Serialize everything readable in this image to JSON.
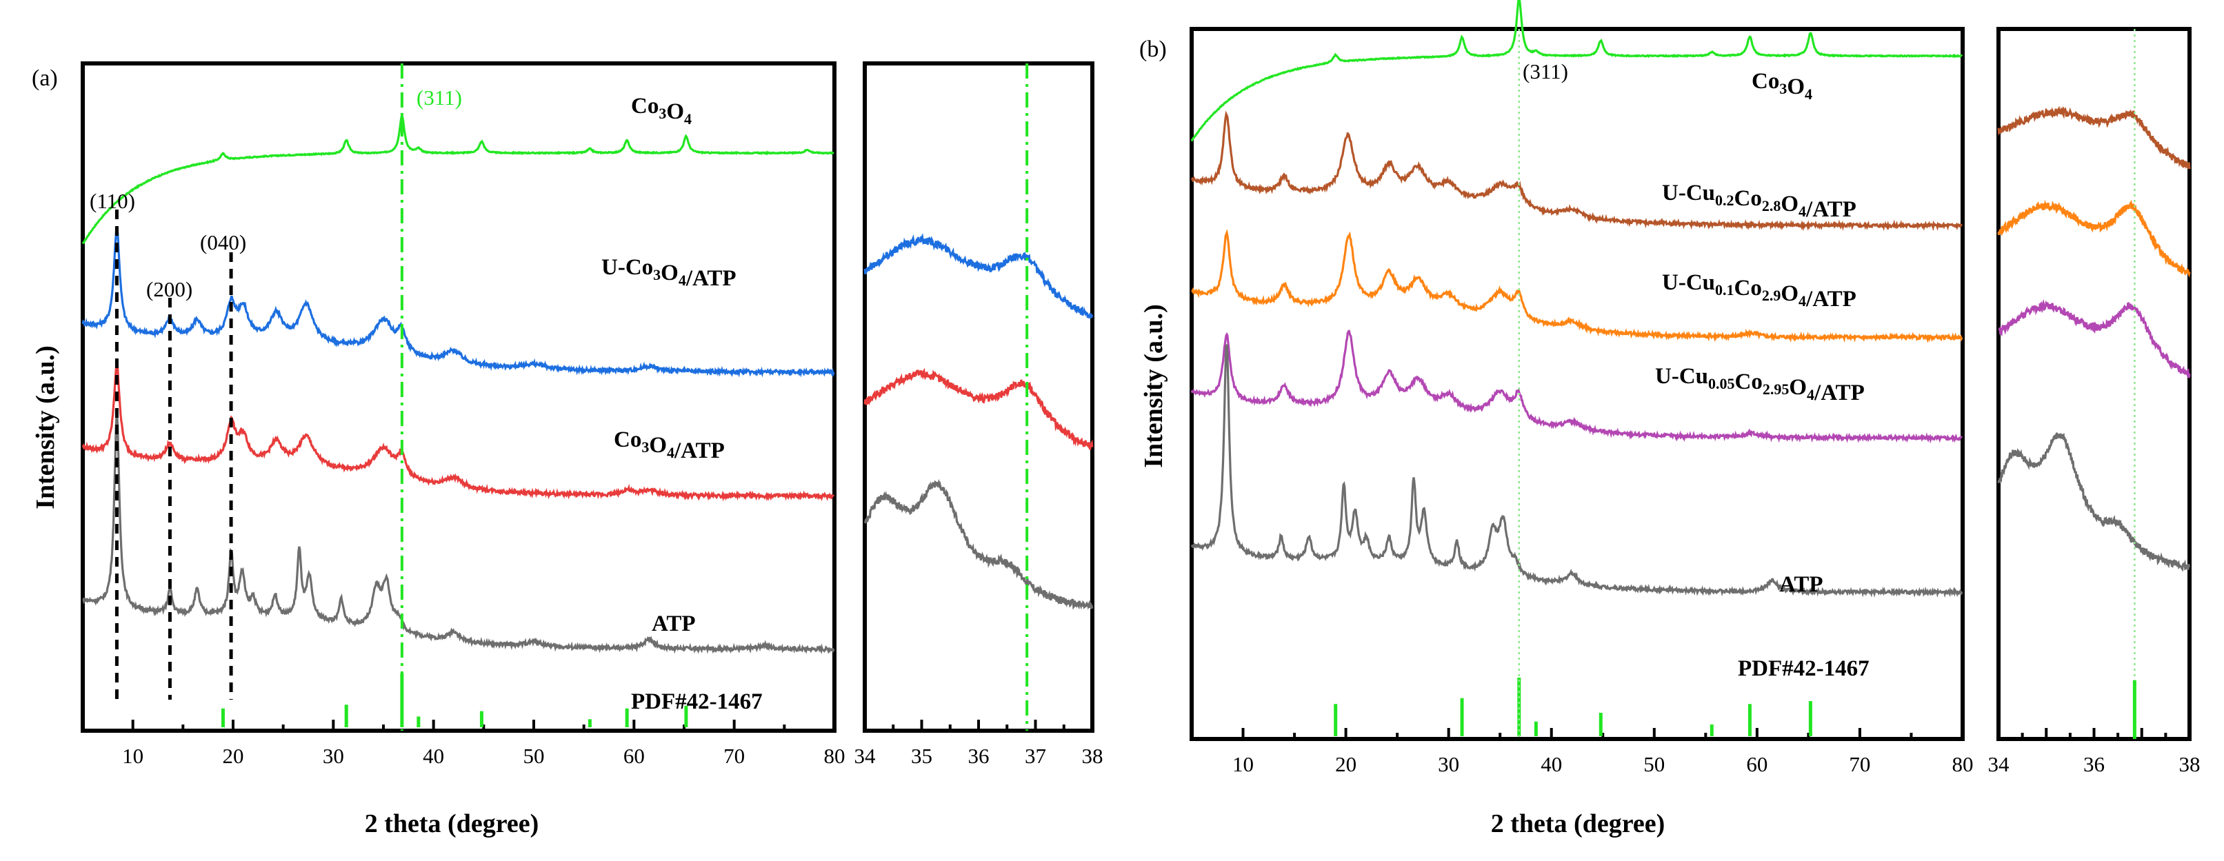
{
  "chart_data": [
    {
      "panel": "(a)",
      "type": "line",
      "xlabel": "2 theta (degree)",
      "ylabel": "Intensity (a.u.)",
      "xlim": [
        5,
        80
      ],
      "xticks": [
        10,
        20,
        30,
        40,
        50,
        60,
        70,
        80
      ],
      "inset": {
        "xlim": [
          34,
          38
        ],
        "xticks": [
          34,
          35,
          36,
          37,
          38
        ]
      },
      "series": [
        {
          "name": "Co3O4",
          "label_parts": [
            [
              "Co",
              ""
            ],
            [
              "3",
              "sub"
            ],
            [
              "O",
              ""
            ],
            [
              "4",
              "sub"
            ]
          ],
          "color": "#22e622",
          "offset": 6.15,
          "bg": "rise",
          "peaks": [
            [
              19.0,
              0.08,
              0.3
            ],
            [
              31.3,
              0.16,
              0.3
            ],
            [
              36.85,
              0.45,
              0.3
            ],
            [
              38.5,
              0.05,
              0.3
            ],
            [
              44.8,
              0.14,
              0.3
            ],
            [
              55.6,
              0.05,
              0.3
            ],
            [
              59.3,
              0.15,
              0.3
            ],
            [
              65.2,
              0.2,
              0.3
            ],
            [
              77.3,
              0.04,
              0.3
            ]
          ]
        },
        {
          "name": "U-Co3O4/ATP",
          "label_parts": [
            [
              "U-Co",
              ""
            ],
            [
              "3",
              "sub"
            ],
            [
              "O",
              ""
            ],
            [
              "4",
              "sub"
            ],
            [
              "/ATP",
              ""
            ]
          ],
          "color": "#1d6fe0",
          "offset": 3.5,
          "bg": "decay",
          "peaks": [
            [
              8.4,
              1.25,
              0.35
            ],
            [
              13.7,
              0.2,
              0.5
            ],
            [
              16.4,
              0.2,
              0.5
            ],
            [
              19.8,
              0.4,
              0.5
            ],
            [
              21.0,
              0.35,
              0.6
            ],
            [
              24.3,
              0.3,
              0.7
            ],
            [
              27.3,
              0.45,
              0.8
            ],
            [
              35.0,
              0.4,
              1.2
            ],
            [
              36.8,
              0.25,
              0.5
            ],
            [
              42.0,
              0.15,
              1.0
            ],
            [
              50.0,
              0.06,
              1.5
            ],
            [
              61.5,
              0.06,
              1.0
            ]
          ]
        },
        {
          "name": "Co3O4/ATP",
          "label_parts": [
            [
              "Co",
              ""
            ],
            [
              "3",
              "sub"
            ],
            [
              "O",
              ""
            ],
            [
              "4",
              "sub"
            ],
            [
              "/ATP",
              ""
            ]
          ],
          "color": "#e83b3b",
          "offset": 2.0,
          "bg": "decay",
          "peaks": [
            [
              8.4,
              1.1,
              0.35
            ],
            [
              13.7,
              0.2,
              0.5
            ],
            [
              19.8,
              0.45,
              0.5
            ],
            [
              21.0,
              0.3,
              0.6
            ],
            [
              24.3,
              0.25,
              0.7
            ],
            [
              27.3,
              0.35,
              0.9
            ],
            [
              35.0,
              0.35,
              1.2
            ],
            [
              36.8,
              0.25,
              0.5
            ],
            [
              42.0,
              0.12,
              1.0
            ],
            [
              59.3,
              0.06,
              0.6
            ],
            [
              61.5,
              0.06,
              1.0
            ]
          ]
        },
        {
          "name": "ATP",
          "label_parts": [
            [
              "ATP",
              ""
            ]
          ],
          "color": "#6e6e6e",
          "offset": 0.15,
          "bg": "decay",
          "peaks": [
            [
              8.4,
              2.35,
              0.3
            ],
            [
              13.7,
              0.3,
              0.25
            ],
            [
              16.4,
              0.3,
              0.3
            ],
            [
              19.8,
              0.75,
              0.25
            ],
            [
              20.9,
              0.5,
              0.35
            ],
            [
              22.0,
              0.2,
              0.3
            ],
            [
              24.2,
              0.25,
              0.3
            ],
            [
              26.6,
              0.8,
              0.25
            ],
            [
              27.6,
              0.5,
              0.35
            ],
            [
              30.8,
              0.3,
              0.25
            ],
            [
              34.3,
              0.45,
              0.5
            ],
            [
              35.3,
              0.55,
              0.5
            ],
            [
              36.5,
              0.15,
              0.4
            ],
            [
              42.0,
              0.12,
              0.6
            ],
            [
              50.0,
              0.06,
              1.0
            ],
            [
              61.5,
              0.12,
              0.6
            ],
            [
              73.0,
              0.04,
              0.8
            ]
          ]
        }
      ],
      "reference_sticks": {
        "label": "PDF#42-1467",
        "color": "#22e622",
        "positions": [
          19.0,
          31.3,
          36.85,
          38.5,
          44.8,
          55.6,
          59.3,
          65.2
        ],
        "heights": [
          0.35,
          0.42,
          1.0,
          0.2,
          0.3,
          0.15,
          0.35,
          0.4
        ]
      },
      "annotations": [
        "(110)",
        "(200)",
        "(040)",
        "(311)"
      ],
      "dashed_lines": [
        8.4,
        13.7,
        19.8
      ],
      "dashdot_line": 36.85
    },
    {
      "panel": "(b)",
      "type": "line",
      "xlabel": "2 theta (degree)",
      "ylabel": "Intensity (a.u.)",
      "xlim": [
        5,
        80
      ],
      "xticks": [
        10,
        20,
        30,
        40,
        50,
        60,
        70,
        80
      ],
      "inset": {
        "xlim": [
          34,
          38
        ],
        "xticks": [
          34,
          36,
          38
        ]
      },
      "series": [
        {
          "name": "Co3O4",
          "label_parts": [
            [
              "Co",
              ""
            ],
            [
              "3",
              "sub"
            ],
            [
              "O",
              ""
            ],
            [
              "4",
              "sub"
            ]
          ],
          "color": "#22e622",
          "offset": 7.4,
          "bg": "rise",
          "peaks": [
            [
              19.0,
              0.1,
              0.3
            ],
            [
              31.3,
              0.25,
              0.3
            ],
            [
              36.85,
              0.75,
              0.3
            ],
            [
              38.5,
              0.05,
              0.3
            ],
            [
              44.8,
              0.2,
              0.3
            ],
            [
              55.6,
              0.05,
              0.3
            ],
            [
              59.3,
              0.25,
              0.3
            ],
            [
              65.2,
              0.3,
              0.3
            ]
          ]
        },
        {
          "name": "U-Cu0.2Co2.8O4/ATP",
          "label_parts": [
            [
              "U-Cu",
              ""
            ],
            [
              "0.2",
              "sub"
            ],
            [
              "Co",
              ""
            ],
            [
              "2.8",
              "sub"
            ],
            [
              "O",
              ""
            ],
            [
              "4",
              "sub"
            ],
            [
              "/ATP",
              ""
            ]
          ],
          "color": "#b5562a",
          "offset": 5.2,
          "bg": "decay",
          "peaks": [
            [
              8.4,
              0.95,
              0.4
            ],
            [
              14.0,
              0.2,
              0.5
            ],
            [
              20.2,
              0.75,
              0.7
            ],
            [
              24.2,
              0.35,
              0.8
            ],
            [
              27.0,
              0.35,
              1.0
            ],
            [
              30.0,
              0.2,
              1.0
            ],
            [
              35.2,
              0.3,
              1.5
            ],
            [
              36.8,
              0.2,
              0.5
            ],
            [
              42.0,
              0.1,
              1.0
            ]
          ]
        },
        {
          "name": "U-Cu0.1Co2.9O4/ATP",
          "label_parts": [
            [
              "U-Cu",
              ""
            ],
            [
              "0.1",
              "sub"
            ],
            [
              "Co",
              ""
            ],
            [
              "2.9",
              "sub"
            ],
            [
              "O",
              ""
            ],
            [
              "4",
              "sub"
            ],
            [
              "/ATP",
              ""
            ]
          ],
          "color": "#ff8412",
          "offset": 3.75,
          "bg": "decay",
          "peaks": [
            [
              8.4,
              0.85,
              0.4
            ],
            [
              14.0,
              0.25,
              0.5
            ],
            [
              20.3,
              0.9,
              0.6
            ],
            [
              24.2,
              0.4,
              0.8
            ],
            [
              27.0,
              0.35,
              1.0
            ],
            [
              30.0,
              0.2,
              1.0
            ],
            [
              35.0,
              0.35,
              1.2
            ],
            [
              36.8,
              0.3,
              0.5
            ],
            [
              42.0,
              0.1,
              1.0
            ],
            [
              59.5,
              0.05,
              0.8
            ]
          ]
        },
        {
          "name": "U-Cu0.05Co2.95O4/ATP",
          "label_parts": [
            [
              "U-Cu",
              ""
            ],
            [
              "0.05",
              "sub"
            ],
            [
              "Co",
              ""
            ],
            [
              "2.95",
              "sub"
            ],
            [
              "O",
              ""
            ],
            [
              "4",
              "sub"
            ],
            [
              "/ATP",
              ""
            ]
          ],
          "color": "#b347b3",
          "offset": 2.45,
          "bg": "decay",
          "peaks": [
            [
              8.4,
              0.85,
              0.4
            ],
            [
              14.0,
              0.25,
              0.5
            ],
            [
              20.3,
              0.95,
              0.6
            ],
            [
              24.2,
              0.4,
              0.8
            ],
            [
              27.0,
              0.35,
              1.0
            ],
            [
              30.0,
              0.2,
              1.0
            ],
            [
              35.0,
              0.35,
              1.2
            ],
            [
              36.8,
              0.3,
              0.5
            ],
            [
              42.0,
              0.1,
              1.0
            ],
            [
              59.5,
              0.05,
              0.8
            ]
          ]
        },
        {
          "name": "ATP",
          "label_parts": [
            [
              "ATP",
              ""
            ]
          ],
          "color": "#6e6e6e",
          "offset": 0.45,
          "bg": "decay",
          "peaks": [
            [
              8.4,
              2.75,
              0.3
            ],
            [
              13.7,
              0.3,
              0.25
            ],
            [
              16.4,
              0.3,
              0.3
            ],
            [
              19.8,
              0.95,
              0.25
            ],
            [
              20.9,
              0.6,
              0.35
            ],
            [
              22.0,
              0.25,
              0.3
            ],
            [
              24.2,
              0.3,
              0.3
            ],
            [
              26.6,
              1.05,
              0.25
            ],
            [
              27.6,
              0.65,
              0.35
            ],
            [
              30.8,
              0.35,
              0.25
            ],
            [
              34.3,
              0.5,
              0.5
            ],
            [
              35.3,
              0.65,
              0.5
            ],
            [
              36.5,
              0.15,
              0.4
            ],
            [
              42.0,
              0.15,
              0.6
            ],
            [
              61.5,
              0.15,
              0.6
            ]
          ]
        }
      ],
      "reference_sticks": {
        "label": "PDF#42-1467",
        "color": "#22e622",
        "positions": [
          19.0,
          31.3,
          36.85,
          38.5,
          44.8,
          55.6,
          59.3,
          65.2
        ],
        "heights": [
          0.55,
          0.65,
          1.0,
          0.25,
          0.4,
          0.2,
          0.55,
          0.6
        ]
      },
      "annotations": [
        "(311)"
      ],
      "dotted_line": 36.85
    }
  ]
}
